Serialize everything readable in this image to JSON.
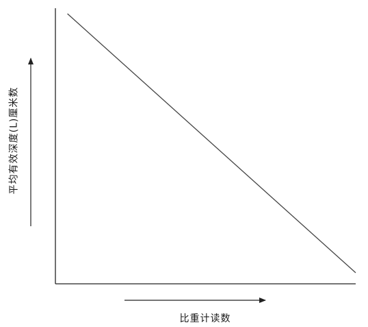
{
  "chart_data": {
    "type": "line",
    "title": "",
    "xlabel": "比重计读数",
    "ylabel": "平均有效深度(L)厘米数",
    "xlim": [
      0,
      1
    ],
    "ylim": [
      0,
      1
    ],
    "grid": false,
    "legend": "none",
    "series": [
      {
        "x": [
          0.04,
          1.0
        ],
        "y": [
          0.98,
          0.04
        ]
      }
    ],
    "colors": {
      "line": "#444444",
      "axis": "#222222",
      "text": "#1a1a1a"
    }
  }
}
